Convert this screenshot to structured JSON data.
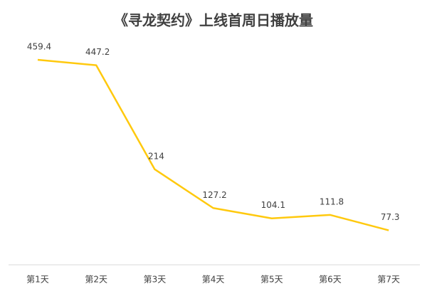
{
  "chart_data": {
    "type": "line",
    "title": "《寻龙契约》上线首周日播放量",
    "categories": [
      "第1天",
      "第2天",
      "第3天",
      "第4天",
      "第5天",
      "第6天",
      "第7天"
    ],
    "values": [
      459.4,
      447.2,
      214,
      127.2,
      104.1,
      111.8,
      77.3
    ],
    "color": "#ffc90e"
  }
}
